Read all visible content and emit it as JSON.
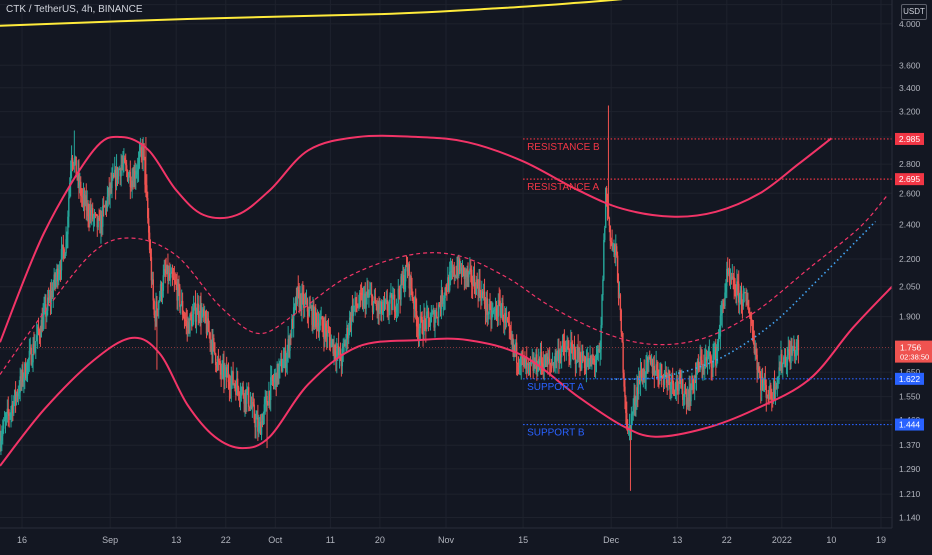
{
  "header": {
    "symbol": "CTK / TetherUS, 4h, BINANCE",
    "currency": "USDT"
  },
  "colors": {
    "background": "#131722",
    "grid": "#1e222d",
    "up_candle": "#26a69a",
    "down_candle": "#ef5350",
    "channel": "#f23467",
    "resistance": "#f23645",
    "support": "#2962ff",
    "trend_dotted": "#42a5f5",
    "moving_average": "#ffeb3b",
    "text": "#b2b5be"
  },
  "chart_data": {
    "type": "candlestick",
    "symbol": "CTK / TetherUS",
    "interval": "4h",
    "exchange": "BINANCE",
    "y_scale": "log",
    "ylim": [
      1.11,
      4.25
    ],
    "y_ticks": [
      1.14,
      1.21,
      1.29,
      1.37,
      1.46,
      1.55,
      1.65,
      1.75,
      1.9,
      2.05,
      2.2,
      2.4,
      2.6,
      2.8,
      3.0,
      3.2,
      3.4,
      3.6,
      4.0,
      4.2
    ],
    "y_tick_labels": [
      "1.140",
      "1.210",
      "1.290",
      "1.370",
      "1.460",
      "1.550",
      "1.650",
      "1.750",
      "1.900",
      "2.050",
      "2.200",
      "2.400",
      "2.600",
      "2.800",
      "3.000",
      "3.200",
      "3.400",
      "3.600",
      "4.000",
      "4.200"
    ],
    "x_axis": {
      "start_date": "2021-08-12",
      "end_date": "2022-01-21",
      "tick_dates": [
        "2021-08-16",
        "2021-09-01",
        "2021-09-13",
        "2021-09-22",
        "2021-10-01",
        "2021-10-11",
        "2021-10-20",
        "2021-11-01",
        "2021-11-15",
        "2021-12-01",
        "2021-12-13",
        "2021-12-22",
        "2022-01-01",
        "2022-01-10",
        "2022-01-19"
      ],
      "tick_labels": [
        "16",
        "Sep",
        "13",
        "22",
        "Oct",
        "11",
        "20",
        "Nov",
        "15",
        "Dec",
        "13",
        "22",
        "2022",
        "10",
        "19"
      ]
    },
    "price_path": [
      [
        "2021-08-12",
        1.4
      ],
      [
        "2021-08-15",
        1.56
      ],
      [
        "2021-08-18",
        1.75
      ],
      [
        "2021-08-21",
        1.98
      ],
      [
        "2021-08-24",
        2.3
      ],
      [
        "2021-08-25",
        2.9
      ],
      [
        "2021-08-27",
        2.55
      ],
      [
        "2021-08-30",
        2.38
      ],
      [
        "2021-09-01",
        2.62
      ],
      [
        "2021-09-03",
        2.8
      ],
      [
        "2021-09-05",
        2.7
      ],
      [
        "2021-09-07",
        2.9
      ],
      [
        "2021-09-09",
        1.9
      ],
      [
        "2021-09-11",
        2.12
      ],
      [
        "2021-09-13",
        2.05
      ],
      [
        "2021-09-15",
        1.85
      ],
      [
        "2021-09-17",
        1.95
      ],
      [
        "2021-09-19",
        1.82
      ],
      [
        "2021-09-21",
        1.65
      ],
      [
        "2021-09-23",
        1.62
      ],
      [
        "2021-09-26",
        1.55
      ],
      [
        "2021-09-28",
        1.42
      ],
      [
        "2021-09-30",
        1.58
      ],
      [
        "2021-10-03",
        1.72
      ],
      [
        "2021-10-05",
        2.0
      ],
      [
        "2021-10-08",
        1.9
      ],
      [
        "2021-10-10",
        1.84
      ],
      [
        "2021-10-13",
        1.7
      ],
      [
        "2021-10-15",
        1.94
      ],
      [
        "2021-10-18",
        2.0
      ],
      [
        "2021-10-20",
        1.92
      ],
      [
        "2021-10-23",
        1.98
      ],
      [
        "2021-10-25",
        2.15
      ],
      [
        "2021-10-27",
        1.85
      ],
      [
        "2021-10-30",
        1.9
      ],
      [
        "2021-11-01",
        2.05
      ],
      [
        "2021-11-03",
        2.15
      ],
      [
        "2021-11-05",
        2.1
      ],
      [
        "2021-11-07",
        2.05
      ],
      [
        "2021-11-09",
        1.9
      ],
      [
        "2021-11-11",
        1.95
      ],
      [
        "2021-11-13",
        1.76
      ],
      [
        "2021-11-16",
        1.65
      ],
      [
        "2021-11-18",
        1.7
      ],
      [
        "2021-11-20",
        1.68
      ],
      [
        "2021-11-22",
        1.75
      ],
      [
        "2021-11-25",
        1.72
      ],
      [
        "2021-11-27",
        1.68
      ],
      [
        "2021-11-29",
        1.72
      ],
      [
        "2021-11-30",
        2.6
      ],
      [
        "2021-12-01",
        2.3
      ],
      [
        "2021-12-02",
        2.2
      ],
      [
        "2021-12-03",
        1.75
      ],
      [
        "2021-12-04",
        1.4
      ],
      [
        "2021-12-06",
        1.62
      ],
      [
        "2021-12-08",
        1.68
      ],
      [
        "2021-12-10",
        1.65
      ],
      [
        "2021-12-13",
        1.6
      ],
      [
        "2021-12-15",
        1.55
      ],
      [
        "2021-12-17",
        1.68
      ],
      [
        "2021-12-20",
        1.72
      ],
      [
        "2021-12-22",
        2.1
      ],
      [
        "2021-12-24",
        2.02
      ],
      [
        "2021-12-26",
        1.95
      ],
      [
        "2021-12-28",
        1.62
      ],
      [
        "2021-12-30",
        1.55
      ],
      [
        "2022-01-01",
        1.7
      ],
      [
        "2022-01-04",
        1.76
      ]
    ],
    "last_price": 1.756,
    "countdown": "02:38:50",
    "channel_upper": [
      [
        "2021-08-12",
        1.78
      ],
      [
        "2021-08-20",
        2.35
      ],
      [
        "2021-08-29",
        2.9
      ],
      [
        "2021-09-03",
        3.0
      ],
      [
        "2021-09-08",
        2.9
      ],
      [
        "2021-09-13",
        2.62
      ],
      [
        "2021-09-18",
        2.46
      ],
      [
        "2021-09-24",
        2.46
      ],
      [
        "2021-09-30",
        2.62
      ],
      [
        "2021-10-07",
        2.9
      ],
      [
        "2021-10-16",
        3.0
      ],
      [
        "2021-10-27",
        3.0
      ],
      [
        "2021-11-05",
        2.96
      ],
      [
        "2021-11-15",
        2.82
      ],
      [
        "2021-11-25",
        2.62
      ],
      [
        "2021-12-03",
        2.5
      ],
      [
        "2021-12-12",
        2.45
      ],
      [
        "2021-12-20",
        2.48
      ],
      [
        "2021-12-28",
        2.6
      ],
      [
        "2022-01-04",
        2.8
      ],
      [
        "2022-01-10",
        2.99
      ]
    ],
    "channel_middle": [
      [
        "2021-08-12",
        1.64
      ],
      [
        "2021-08-20",
        1.92
      ],
      [
        "2021-08-29",
        2.24
      ],
      [
        "2021-09-05",
        2.32
      ],
      [
        "2021-09-13",
        2.22
      ],
      [
        "2021-09-21",
        1.95
      ],
      [
        "2021-09-28",
        1.82
      ],
      [
        "2021-10-05",
        1.92
      ],
      [
        "2021-10-14",
        2.1
      ],
      [
        "2021-10-25",
        2.22
      ],
      [
        "2021-11-03",
        2.22
      ],
      [
        "2021-11-12",
        2.1
      ],
      [
        "2021-11-20",
        1.95
      ],
      [
        "2021-11-30",
        1.82
      ],
      [
        "2021-12-09",
        1.77
      ],
      [
        "2021-12-18",
        1.8
      ],
      [
        "2021-12-27",
        1.92
      ],
      [
        "2022-01-06",
        2.15
      ],
      [
        "2022-01-15",
        2.38
      ],
      [
        "2022-01-20",
        2.58
      ]
    ],
    "channel_lower": [
      [
        "2021-08-12",
        1.3
      ],
      [
        "2021-08-20",
        1.5
      ],
      [
        "2021-08-29",
        1.7
      ],
      [
        "2021-09-05",
        1.8
      ],
      [
        "2021-09-10",
        1.73
      ],
      [
        "2021-09-15",
        1.52
      ],
      [
        "2021-09-20",
        1.4
      ],
      [
        "2021-09-25",
        1.36
      ],
      [
        "2021-09-30",
        1.4
      ],
      [
        "2021-10-07",
        1.6
      ],
      [
        "2021-10-16",
        1.76
      ],
      [
        "2021-10-27",
        1.79
      ],
      [
        "2021-11-05",
        1.79
      ],
      [
        "2021-11-15",
        1.72
      ],
      [
        "2021-11-25",
        1.55
      ],
      [
        "2021-12-03",
        1.44
      ],
      [
        "2021-12-09",
        1.4
      ],
      [
        "2021-12-18",
        1.43
      ],
      [
        "2021-12-27",
        1.5
      ],
      [
        "2022-01-06",
        1.62
      ],
      [
        "2022-01-14",
        1.85
      ],
      [
        "2022-01-22",
        2.08
      ]
    ],
    "dotted_trend": [
      [
        "2021-12-01",
        1.62
      ],
      [
        "2021-12-10",
        1.63
      ],
      [
        "2021-12-20",
        1.7
      ],
      [
        "2021-12-30",
        1.86
      ],
      [
        "2022-01-08",
        2.1
      ],
      [
        "2022-01-18",
        2.42
      ]
    ],
    "moving_average": [
      [
        "2021-08-12",
        3.98
      ],
      [
        "2021-09-15",
        4.05
      ],
      [
        "2021-10-20",
        4.1
      ],
      [
        "2021-11-10",
        4.16
      ],
      [
        "2021-11-25",
        4.22
      ],
      [
        "2021-12-03",
        4.26
      ]
    ],
    "levels": [
      {
        "label": "RESISTANCE B",
        "value": 2.985,
        "value_label": "2.985",
        "kind": "resistance",
        "from": "2021-11-15"
      },
      {
        "label": "RESISTANCE A",
        "value": 2.695,
        "value_label": "2.695",
        "kind": "resistance",
        "from": "2021-11-15"
      },
      {
        "label": "SUPPORT A",
        "value": 1.622,
        "value_label": "1.622",
        "kind": "support",
        "from": "2021-11-15"
      },
      {
        "label": "SUPPORT B",
        "value": 1.444,
        "value_label": "1.444",
        "kind": "support",
        "from": "2021-11-15"
      }
    ]
  }
}
